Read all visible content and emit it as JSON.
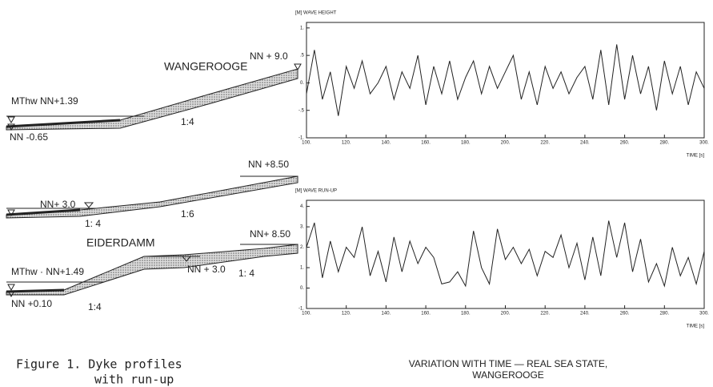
{
  "profiles": {
    "wangerooge": {
      "name": "WANGEROOGE",
      "crest": "NN + 9.0",
      "mthw": "MThw NN+1.39",
      "low": "NN -0.65",
      "slope": "1:4"
    },
    "middle": {
      "crest": "NN +8.50",
      "berm": "NN+ 3.0",
      "slope_upper": "1:6",
      "slope_lower": "1: 4"
    },
    "eiderdamm": {
      "name": "EIDERDAMM",
      "crest": "NN+ 8.50",
      "mthw": "MThw · NN+1.49",
      "berm": "NN + 3.0",
      "slope_upper": "1: 4",
      "low": "NN +0.10",
      "slope_lower": "1:4"
    }
  },
  "caption": [
    "Figure 1. Dyke profiles",
    "with run-up"
  ],
  "chart_caption": [
    "VARIATION WITH TIME — REAL SEA STATE,",
    "WANGEROOGE"
  ],
  "chart_data": [
    {
      "type": "line",
      "y_label": "[M] WAVE HEIGHT",
      "x_label": "TIME [s]",
      "x": [
        100,
        104,
        108,
        112,
        116,
        120,
        124,
        128,
        132,
        136,
        140,
        144,
        148,
        152,
        156,
        160,
        164,
        168,
        172,
        176,
        180,
        184,
        188,
        192,
        196,
        200,
        204,
        208,
        212,
        216,
        220,
        224,
        228,
        232,
        236,
        240,
        244,
        248,
        252,
        256,
        260,
        264,
        268,
        272,
        276,
        280,
        284,
        288,
        292,
        296,
        300
      ],
      "series": [
        {
          "color": "#222222",
          "values": [
            -0.2,
            0.6,
            -0.3,
            0.2,
            -0.6,
            0.3,
            -0.1,
            0.4,
            -0.2,
            0.0,
            0.3,
            -0.3,
            0.2,
            -0.1,
            0.5,
            -0.4,
            0.3,
            -0.2,
            0.4,
            -0.3,
            0.1,
            0.4,
            -0.2,
            0.3,
            -0.1,
            0.2,
            0.5,
            -0.3,
            0.2,
            -0.4,
            0.3,
            -0.1,
            0.2,
            -0.2,
            0.1,
            0.3,
            -0.3,
            0.6,
            -0.4,
            0.7,
            -0.3,
            0.5,
            -0.2,
            0.3,
            -0.5,
            0.4,
            -0.2,
            0.3,
            -0.4,
            0.2,
            -0.1
          ]
        }
      ],
      "xlim": [
        100,
        300
      ],
      "ylim": [
        -1,
        1.1
      ],
      "xticks": [
        {
          "value": 100,
          "label": "100."
        },
        {
          "value": 120,
          "label": "120."
        },
        {
          "value": 140,
          "label": "140."
        },
        {
          "value": 160,
          "label": "160."
        },
        {
          "value": 180,
          "label": "180."
        },
        {
          "value": 200,
          "label": "200."
        },
        {
          "value": 220,
          "label": "220."
        },
        {
          "value": 240,
          "label": "240."
        },
        {
          "value": 260,
          "label": "260."
        },
        {
          "value": 280,
          "label": "280."
        },
        {
          "value": 300,
          "label": "300."
        }
      ],
      "yticks": [
        {
          "value": 1,
          "label": "1."
        },
        {
          "value": 0.5,
          "label": ".5"
        },
        {
          "value": 0,
          "label": "0."
        },
        {
          "value": -0.5,
          "label": "-.5"
        },
        {
          "value": -1,
          "label": "-1."
        }
      ]
    },
    {
      "type": "line",
      "y_label": "[M] WAVE RUN-UP",
      "x_label": "TIME [s]",
      "x": [
        100,
        104,
        108,
        112,
        116,
        120,
        124,
        128,
        132,
        136,
        140,
        144,
        148,
        152,
        156,
        160,
        164,
        168,
        172,
        176,
        180,
        184,
        188,
        192,
        196,
        200,
        204,
        208,
        212,
        216,
        220,
        224,
        228,
        232,
        236,
        240,
        244,
        248,
        252,
        256,
        260,
        264,
        268,
        272,
        276,
        280,
        284,
        288,
        292,
        296,
        300
      ],
      "series": [
        {
          "color": "#222222",
          "values": [
            2.0,
            3.2,
            0.5,
            2.3,
            0.8,
            2.0,
            1.5,
            3.0,
            0.6,
            1.8,
            0.3,
            2.5,
            0.8,
            2.3,
            1.2,
            2.0,
            1.5,
            0.2,
            0.3,
            0.8,
            0.1,
            2.8,
            1.0,
            0.2,
            2.9,
            1.4,
            2.0,
            1.2,
            1.9,
            0.6,
            1.8,
            1.5,
            2.6,
            1.0,
            2.2,
            0.4,
            2.5,
            0.6,
            3.3,
            1.5,
            3.2,
            0.8,
            2.4,
            0.3,
            1.2,
            0.1,
            2.0,
            0.6,
            1.5,
            0.2,
            1.8
          ]
        }
      ],
      "xlim": [
        100,
        300
      ],
      "ylim": [
        -1,
        4.3
      ],
      "xticks": [
        {
          "value": 100,
          "label": "100."
        },
        {
          "value": 120,
          "label": "120."
        },
        {
          "value": 140,
          "label": "140."
        },
        {
          "value": 160,
          "label": "160."
        },
        {
          "value": 180,
          "label": "180."
        },
        {
          "value": 200,
          "label": "200."
        },
        {
          "value": 220,
          "label": "220."
        },
        {
          "value": 240,
          "label": "240."
        },
        {
          "value": 260,
          "label": "260."
        },
        {
          "value": 280,
          "label": "280."
        },
        {
          "value": 300,
          "label": "300."
        }
      ],
      "yticks": [
        {
          "value": 4,
          "label": "4."
        },
        {
          "value": 3,
          "label": "3."
        },
        {
          "value": 2,
          "label": "2."
        },
        {
          "value": 1,
          "label": "1."
        },
        {
          "value": 0,
          "label": "0."
        },
        {
          "value": -1,
          "label": "-1."
        }
      ]
    }
  ]
}
